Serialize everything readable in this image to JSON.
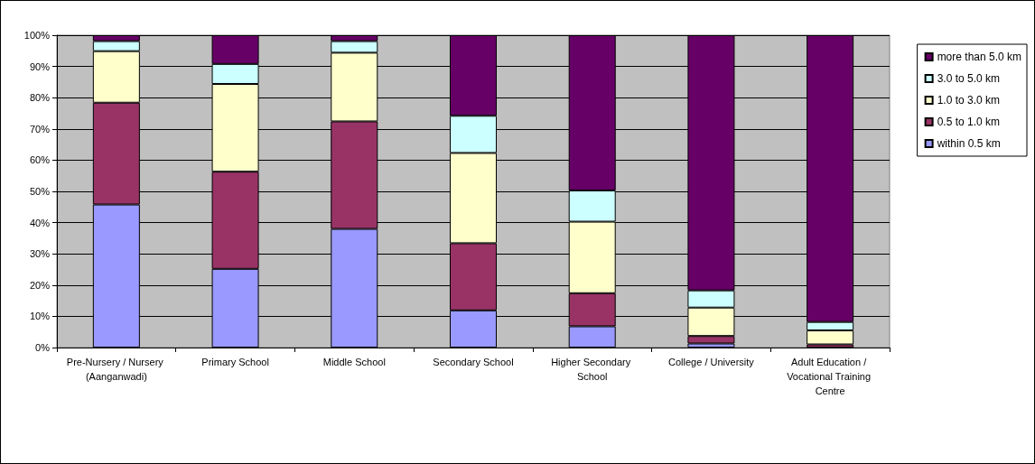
{
  "chart_data": {
    "type": "bar",
    "stacked": true,
    "categories": [
      "Pre-Nursery / Nursery (Aanganwadi)",
      "Primary School",
      "Middle School",
      "Secondary School",
      "Higher Secondary School",
      "College / University",
      "Adult Education / Vocational Training Centre"
    ],
    "series": [
      {
        "name": "within 0.5 km",
        "color": "#9999ff",
        "values": [
          45.8,
          25.2,
          38.0,
          11.9,
          6.8,
          1.3,
          null
        ]
      },
      {
        "name": "0.5 to 1.0 km",
        "color": "#993366",
        "values": [
          32.6,
          31.1,
          34.4,
          21.5,
          10.6,
          2.4,
          1.0
        ]
      },
      {
        "name": "1.0 to 3.0 km",
        "color": "#ffffcc",
        "values": [
          16.5,
          28.1,
          22.0,
          28.9,
          22.9,
          9.1,
          4.5
        ]
      },
      {
        "name": "3.0 to 5.0 km",
        "color": "#ccffff",
        "values": [
          3.2,
          6.4,
          3.7,
          11.9,
          10.0,
          5.5,
          2.7
        ]
      },
      {
        "name": "more than 5.0 km",
        "color": "#660066",
        "values": [
          1.9,
          9.2,
          1.9,
          25.8,
          49.7,
          81.7,
          91.8
        ]
      }
    ],
    "ylim": [
      0,
      100
    ],
    "yticks": [
      {
        "value": 0,
        "label": "0%"
      },
      {
        "value": 10,
        "label": "10%"
      },
      {
        "value": 20,
        "label": "20%"
      },
      {
        "value": 30,
        "label": "30%"
      },
      {
        "value": 40,
        "label": "40%"
      },
      {
        "value": 50,
        "label": "50%"
      },
      {
        "value": 60,
        "label": "60%"
      },
      {
        "value": 70,
        "label": "70%"
      },
      {
        "value": 80,
        "label": "80%"
      },
      {
        "value": 90,
        "label": "90%"
      },
      {
        "value": 100,
        "label": "100%"
      }
    ],
    "grid": "y",
    "legend": "right"
  }
}
